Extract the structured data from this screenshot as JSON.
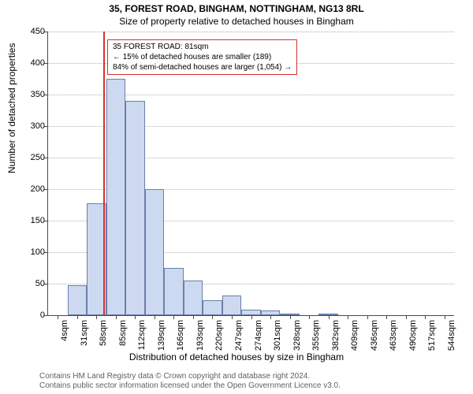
{
  "title_main": "35, FOREST ROAD, BINGHAM, NOTTINGHAM, NG13 8RL",
  "title_sub": "Size of property relative to detached houses in Bingham",
  "y_axis_label": "Number of detached properties",
  "x_axis_label": "Distribution of detached houses by size in Bingham",
  "chart": {
    "type": "histogram",
    "ylim": [
      0,
      450
    ],
    "ytick_step": 50,
    "bar_fill": "#cdd9f0",
    "bar_border": "#6a7fa8",
    "grid_color": "#b0b0b0",
    "axis_color": "#4a4a4a",
    "marker_color": "#d93030",
    "background": "#ffffff",
    "marker_position_sqm": 81,
    "x_start": 4,
    "x_step": 27,
    "x_count": 21,
    "bar_values": [
      0,
      47,
      178,
      375,
      340,
      200,
      75,
      55,
      24,
      31,
      9,
      8,
      3,
      0,
      3,
      0,
      0,
      0,
      0,
      0,
      0
    ]
  },
  "annotation": {
    "line1": "35 FOREST ROAD: 81sqm",
    "line2": "← 15% of detached houses are smaller (189)",
    "line3": "84% of semi-detached houses are larger (1,054) →"
  },
  "footer": {
    "line1": "Contains HM Land Registry data © Crown copyright and database right 2024.",
    "line2": "Contains public sector information licensed under the Open Government Licence v3.0."
  }
}
